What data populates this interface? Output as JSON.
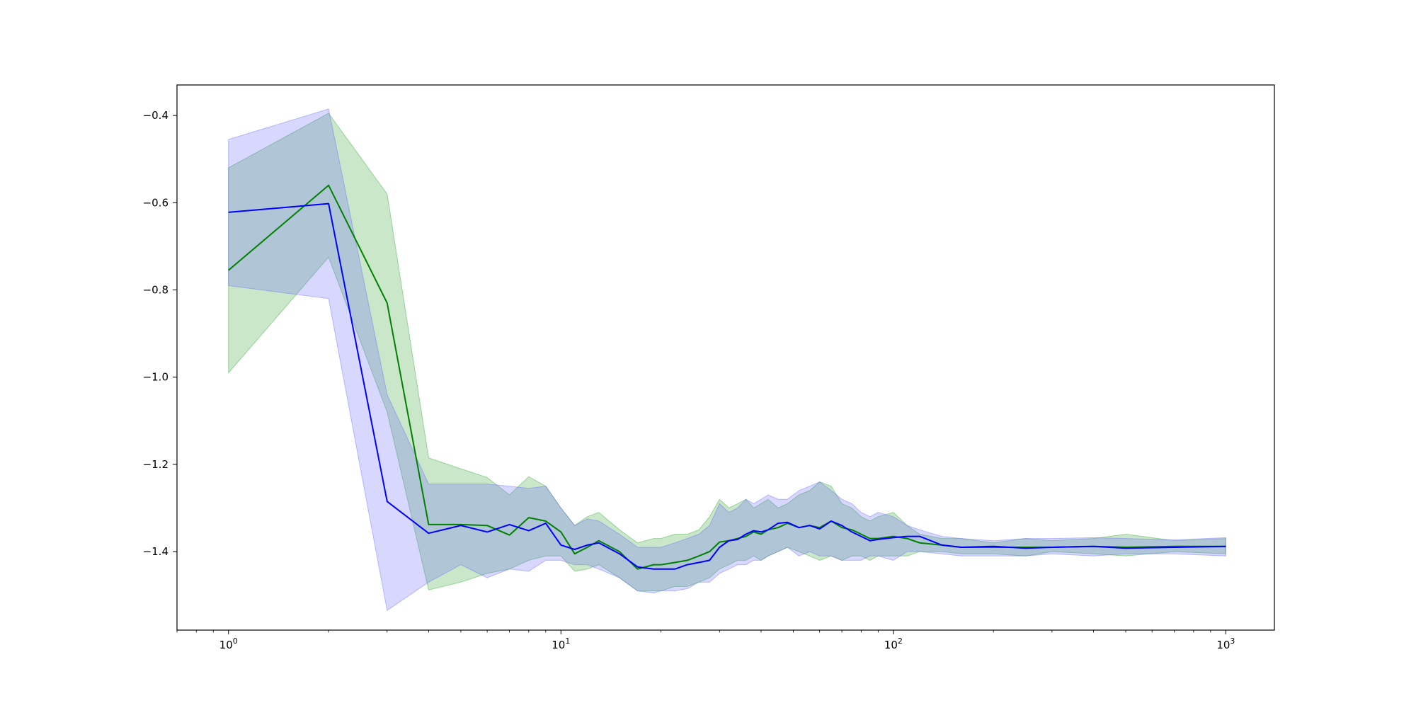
{
  "chart_data": {
    "type": "line",
    "title": "",
    "xlabel": "",
    "ylabel": "",
    "xscale": "log",
    "xlim": [
      0.7,
      1400
    ],
    "ylim": [
      -1.58,
      -0.33
    ],
    "grid": false,
    "legend": "none",
    "x_ticks": [
      {
        "value": 1,
        "base": "10",
        "exp": "0"
      },
      {
        "value": 10,
        "base": "10",
        "exp": "1"
      },
      {
        "value": 100,
        "base": "10",
        "exp": "2"
      },
      {
        "value": 1000,
        "base": "10",
        "exp": "3"
      }
    ],
    "y_ticks": [
      {
        "value": -0.4,
        "label": "−0.4"
      },
      {
        "value": -0.6,
        "label": "−0.6"
      },
      {
        "value": -0.8,
        "label": "−0.8"
      },
      {
        "value": -1.0,
        "label": "−1.0"
      },
      {
        "value": -1.2,
        "label": "−1.2"
      },
      {
        "value": -1.4,
        "label": "−1.4"
      }
    ],
    "series": [
      {
        "color": "#008000",
        "band_color": "#2ca02c",
        "x": [
          1,
          2,
          3,
          4,
          5,
          6,
          7,
          8,
          9,
          10,
          11,
          12,
          13,
          15,
          17,
          19,
          20,
          22,
          24,
          26,
          28,
          30,
          32,
          34,
          36,
          38,
          40,
          42,
          45,
          48,
          52,
          56,
          60,
          65,
          70,
          75,
          80,
          85,
          90,
          100,
          110,
          120,
          140,
          160,
          200,
          250,
          300,
          400,
          500,
          700,
          1000
        ],
        "y": [
          -0.755,
          -0.56,
          -0.83,
          -1.338,
          -1.338,
          -1.34,
          -1.362,
          -1.322,
          -1.33,
          -1.355,
          -1.405,
          -1.39,
          -1.375,
          -1.4,
          -1.44,
          -1.43,
          -1.43,
          -1.425,
          -1.42,
          -1.41,
          -1.4,
          -1.378,
          -1.375,
          -1.37,
          -1.365,
          -1.355,
          -1.36,
          -1.35,
          -1.345,
          -1.335,
          -1.345,
          -1.34,
          -1.345,
          -1.33,
          -1.345,
          -1.35,
          -1.36,
          -1.37,
          -1.37,
          -1.365,
          -1.37,
          -1.38,
          -1.385,
          -1.39,
          -1.39,
          -1.39,
          -1.39,
          -1.388,
          -1.39,
          -1.388,
          -1.388
        ],
        "upper": [
          -0.52,
          -0.395,
          -0.58,
          -1.185,
          -1.21,
          -1.23,
          -1.27,
          -1.228,
          -1.25,
          -1.3,
          -1.34,
          -1.32,
          -1.31,
          -1.35,
          -1.38,
          -1.37,
          -1.37,
          -1.36,
          -1.36,
          -1.35,
          -1.32,
          -1.28,
          -1.3,
          -1.29,
          -1.28,
          -1.3,
          -1.29,
          -1.28,
          -1.3,
          -1.29,
          -1.27,
          -1.26,
          -1.24,
          -1.25,
          -1.29,
          -1.3,
          -1.32,
          -1.33,
          -1.32,
          -1.31,
          -1.34,
          -1.36,
          -1.37,
          -1.37,
          -1.38,
          -1.37,
          -1.375,
          -1.37,
          -1.36,
          -1.375,
          -1.37
        ],
        "lower": [
          -0.99,
          -0.725,
          -1.08,
          -1.488,
          -1.47,
          -1.45,
          -1.44,
          -1.42,
          -1.41,
          -1.41,
          -1.445,
          -1.44,
          -1.43,
          -1.46,
          -1.49,
          -1.49,
          -1.49,
          -1.48,
          -1.48,
          -1.47,
          -1.46,
          -1.44,
          -1.43,
          -1.42,
          -1.42,
          -1.41,
          -1.42,
          -1.41,
          -1.4,
          -1.39,
          -1.4,
          -1.41,
          -1.42,
          -1.41,
          -1.42,
          -1.41,
          -1.41,
          -1.42,
          -1.41,
          -1.41,
          -1.41,
          -1.4,
          -1.4,
          -1.405,
          -1.405,
          -1.41,
          -1.4,
          -1.405,
          -1.41,
          -1.4,
          -1.405
        ]
      },
      {
        "color": "#0000ff",
        "band_color": "#6464ff",
        "x": [
          1,
          2,
          3,
          4,
          5,
          6,
          7,
          8,
          9,
          10,
          11,
          12,
          13,
          15,
          17,
          19,
          20,
          22,
          24,
          26,
          28,
          30,
          32,
          34,
          36,
          38,
          40,
          42,
          45,
          48,
          52,
          56,
          60,
          65,
          70,
          75,
          80,
          85,
          90,
          100,
          110,
          120,
          140,
          160,
          200,
          250,
          300,
          400,
          500,
          700,
          1000
        ],
        "y": [
          -0.622,
          -0.602,
          -1.285,
          -1.358,
          -1.34,
          -1.355,
          -1.338,
          -1.352,
          -1.335,
          -1.385,
          -1.395,
          -1.385,
          -1.38,
          -1.405,
          -1.435,
          -1.44,
          -1.44,
          -1.44,
          -1.43,
          -1.425,
          -1.42,
          -1.39,
          -1.375,
          -1.372,
          -1.36,
          -1.352,
          -1.355,
          -1.35,
          -1.335,
          -1.333,
          -1.345,
          -1.34,
          -1.348,
          -1.33,
          -1.34,
          -1.355,
          -1.365,
          -1.375,
          -1.372,
          -1.368,
          -1.365,
          -1.365,
          -1.385,
          -1.39,
          -1.388,
          -1.392,
          -1.39,
          -1.388,
          -1.392,
          -1.39,
          -1.388
        ],
        "upper": [
          -0.455,
          -0.385,
          -1.04,
          -1.245,
          -1.245,
          -1.245,
          -1.25,
          -1.255,
          -1.25,
          -1.3,
          -1.34,
          -1.325,
          -1.33,
          -1.36,
          -1.39,
          -1.39,
          -1.39,
          -1.38,
          -1.37,
          -1.36,
          -1.34,
          -1.29,
          -1.31,
          -1.3,
          -1.28,
          -1.29,
          -1.28,
          -1.27,
          -1.28,
          -1.28,
          -1.26,
          -1.25,
          -1.24,
          -1.26,
          -1.28,
          -1.29,
          -1.31,
          -1.32,
          -1.31,
          -1.32,
          -1.34,
          -1.35,
          -1.365,
          -1.37,
          -1.375,
          -1.37,
          -1.37,
          -1.368,
          -1.37,
          -1.373,
          -1.368
        ],
        "lower": [
          -0.79,
          -0.82,
          -1.535,
          -1.47,
          -1.43,
          -1.46,
          -1.44,
          -1.445,
          -1.42,
          -1.42,
          -1.43,
          -1.43,
          -1.44,
          -1.46,
          -1.49,
          -1.495,
          -1.49,
          -1.49,
          -1.485,
          -1.47,
          -1.47,
          -1.45,
          -1.44,
          -1.43,
          -1.43,
          -1.42,
          -1.42,
          -1.41,
          -1.4,
          -1.39,
          -1.41,
          -1.4,
          -1.41,
          -1.41,
          -1.42,
          -1.42,
          -1.42,
          -1.41,
          -1.41,
          -1.42,
          -1.4,
          -1.4,
          -1.405,
          -1.41,
          -1.41,
          -1.41,
          -1.405,
          -1.41,
          -1.405,
          -1.405,
          -1.41
        ]
      }
    ]
  }
}
